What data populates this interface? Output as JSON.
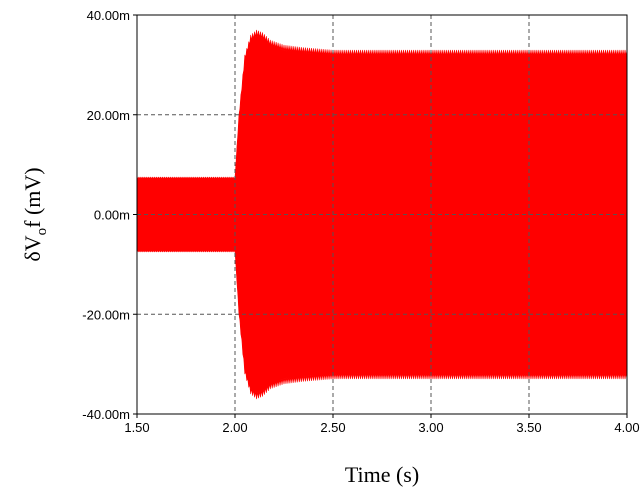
{
  "chart_data": {
    "type": "area",
    "title": "",
    "xlabel": "Time (s)",
    "ylabel": {
      "prefix": "δV",
      "subscript": "o",
      "suffix": "f (mV)"
    },
    "xlim": [
      1.5,
      4.0
    ],
    "ylim": [
      -0.04,
      0.04
    ],
    "x_ticks": [
      1.5,
      2.0,
      2.5,
      3.0,
      3.5,
      4.0
    ],
    "x_tick_labels": [
      "1.50",
      "2.00",
      "2.50",
      "3.00",
      "3.50",
      "4.00"
    ],
    "y_ticks": [
      -0.04,
      -0.02,
      0,
      0.02,
      0.04
    ],
    "y_tick_labels": [
      "-40.00m",
      "-20.00m",
      "0.00m",
      "20.00m",
      "40.00m"
    ],
    "grid": true,
    "series": [
      {
        "color": "#ff0000",
        "envelope": {
          "x": [
            1.5,
            2.0,
            2.02,
            2.05,
            2.08,
            2.11,
            2.14,
            2.18,
            2.25,
            2.35,
            2.5,
            3.0,
            3.5,
            4.0
          ],
          "upper": [
            0.0075,
            0.0075,
            0.02,
            0.032,
            0.036,
            0.037,
            0.0365,
            0.035,
            0.034,
            0.0335,
            0.033,
            0.033,
            0.033,
            0.033
          ],
          "lower": [
            -0.0075,
            -0.0075,
            -0.02,
            -0.032,
            -0.036,
            -0.037,
            -0.0365,
            -0.035,
            -0.034,
            -0.0335,
            -0.033,
            -0.033,
            -0.033,
            -0.033
          ]
        }
      }
    ]
  }
}
